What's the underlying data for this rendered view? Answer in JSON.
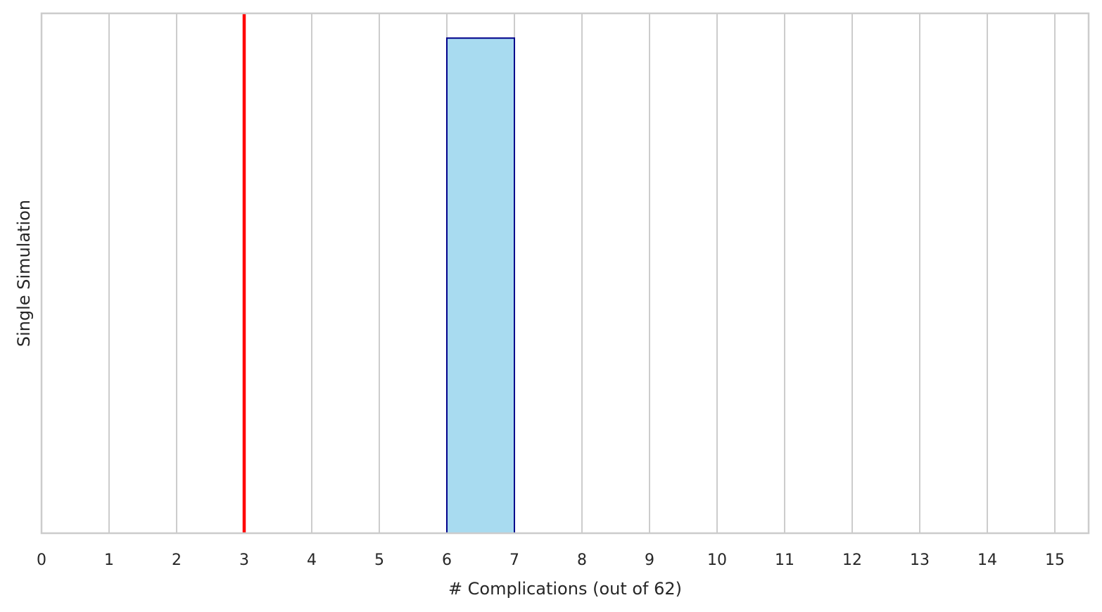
{
  "chart_data": {
    "type": "bar",
    "title": "",
    "xlabel": "# Complications (out of 62)",
    "ylabel": "Single Simulation",
    "xlim": [
      0,
      15.5
    ],
    "ylim": [
      0,
      1.05
    ],
    "x_ticks": [
      "0",
      "1",
      "2",
      "3",
      "4",
      "5",
      "6",
      "7",
      "8",
      "9",
      "10",
      "11",
      "12",
      "13",
      "14",
      "15"
    ],
    "y_ticks_shown": false,
    "grid": "vertical",
    "bins": [
      {
        "start": 6,
        "end": 7,
        "value": 1
      }
    ],
    "reference_line": {
      "x": 3
    },
    "colors": {
      "bar_fill": "#a8dbf0",
      "bar_edge": "#00008b",
      "reference_line": "#ff0000",
      "grid": "#cccccc",
      "spine": "#cccccc",
      "text": "#262626"
    }
  }
}
